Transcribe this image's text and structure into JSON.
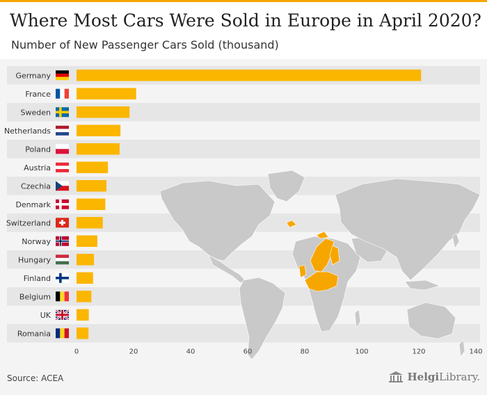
{
  "header": {
    "title": "Where Most Cars Were Sold in Europe in April 2020?",
    "subtitle": "Number of New Passenger Cars Sold (thousand)"
  },
  "chart_data": {
    "type": "bar",
    "orientation": "horizontal",
    "title": "Where Most Cars Were Sold in Europe in April 2020?",
    "subtitle": "Number of New Passenger Cars Sold (thousand)",
    "categories": [
      "Germany",
      "France",
      "Sweden",
      "Netherlands",
      "Poland",
      "Austria",
      "Czechia",
      "Denmark",
      "Switzerland",
      "Norway",
      "Hungary",
      "Finland",
      "Belgium",
      "UK",
      "Romania"
    ],
    "values": [
      120.8,
      20.9,
      18.6,
      15.4,
      15.1,
      11.0,
      10.5,
      10.1,
      9.2,
      7.3,
      6.1,
      5.8,
      5.2,
      4.3,
      4.2
    ],
    "xlim": [
      0,
      140
    ],
    "xticks": [
      0,
      20,
      40,
      60,
      80,
      100,
      120,
      140
    ],
    "xlabel": "",
    "ylabel": "",
    "grid": false,
    "bar_color": "#fbb600",
    "alt_row_color": "#e6e6e6",
    "background": "world map (grey) with European countries highlighted in orange"
  },
  "flags": {
    "Germany": "flag-germany-icon",
    "France": "flag-france-icon",
    "Sweden": "flag-sweden-icon",
    "Netherlands": "flag-netherlands-icon",
    "Poland": "flag-poland-icon",
    "Austria": "flag-austria-icon",
    "Czechia": "flag-czechia-icon",
    "Denmark": "flag-denmark-icon",
    "Switzerland": "flag-switzerland-icon",
    "Norway": "flag-norway-icon",
    "Hungary": "flag-hungary-icon",
    "Finland": "flag-finland-icon",
    "Belgium": "flag-belgium-icon",
    "UK": "flag-uk-icon",
    "Romania": "flag-romania-icon"
  },
  "footer": {
    "source": "Source: ACEA",
    "brand_bold": "Helgi",
    "brand_rest": "Library."
  }
}
